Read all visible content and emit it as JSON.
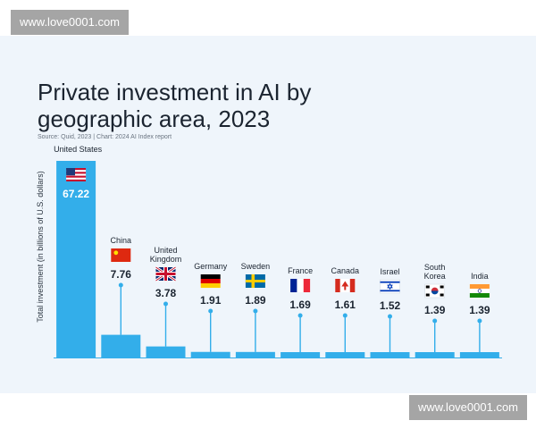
{
  "watermark_top": "www.love0001.com",
  "watermark_bottom": "www.love0001.com",
  "chart_data": {
    "type": "bar",
    "title": "Private investment in AI by geographic area, 2023",
    "title_lines": [
      "Private investment in AI by",
      "geographic area, 2023"
    ],
    "source": "Source: Quid, 2023 | Chart: 2024 AI Index report",
    "ylabel": "Total investment (in billions of U.S. dollars)",
    "xlabel": "",
    "categories": [
      "United States",
      "China",
      "United Kingdom",
      "Germany",
      "Sweden",
      "France",
      "Canada",
      "Israel",
      "South Korea",
      "India"
    ],
    "category_lines": [
      [
        "United States"
      ],
      [
        "China"
      ],
      [
        "United",
        "Kingdom"
      ],
      [
        "Germany"
      ],
      [
        "Sweden"
      ],
      [
        "France"
      ],
      [
        "Canada"
      ],
      [
        "Israel"
      ],
      [
        "South",
        "Korea"
      ],
      [
        "India"
      ]
    ],
    "values": [
      67.22,
      7.76,
      3.78,
      1.91,
      1.89,
      1.69,
      1.61,
      1.52,
      1.39,
      1.39
    ],
    "value_labels": [
      "67.22",
      "7.76",
      "3.78",
      "1.91",
      "1.89",
      "1.69",
      "1.61",
      "1.52",
      "1.39",
      "1.39"
    ],
    "flags": [
      "us-flag-icon",
      "china-flag-icon",
      "uk-flag-icon",
      "germany-flag-icon",
      "sweden-flag-icon",
      "france-flag-icon",
      "canada-flag-icon",
      "israel-flag-icon",
      "south-korea-flag-icon",
      "india-flag-icon"
    ],
    "ylim": [
      0,
      67.22
    ],
    "grid": false,
    "legend": "none",
    "bar_color": "#33aeea",
    "leader_color": "#33aeea",
    "text_color": "#1b2430",
    "value_label_inside_color": "#ffffff"
  }
}
